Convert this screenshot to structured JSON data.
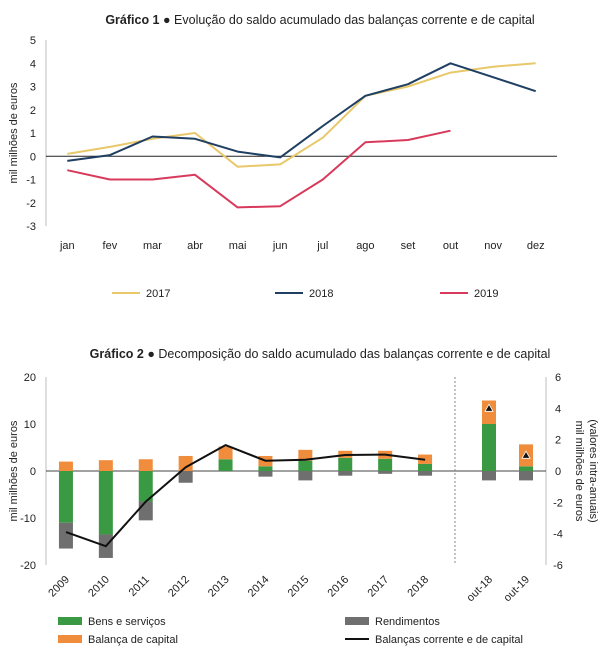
{
  "chart_data": [
    {
      "type": "line",
      "title_bold": "Gráfico 1",
      "title_bullet": "●",
      "title": "Evolução do saldo acumulado das balanças corrente e de capital",
      "ylabel": "mil milhões de euros",
      "ylim": [
        -3,
        5
      ],
      "yticks": [
        -3,
        -2,
        -1,
        0,
        1,
        2,
        3,
        4,
        5
      ],
      "categories": [
        "jan",
        "fev",
        "mar",
        "abr",
        "mai",
        "jun",
        "jul",
        "ago",
        "set",
        "out",
        "nov",
        "dez"
      ],
      "series": [
        {
          "name": "2017",
          "color": "#e8c86a",
          "values": [
            0.1,
            0.4,
            0.75,
            1.0,
            -0.45,
            -0.35,
            0.8,
            2.6,
            3.0,
            3.6,
            3.85,
            4.0
          ]
        },
        {
          "name": "2018",
          "color": "#1f3f63",
          "values": [
            -0.2,
            0.05,
            0.85,
            0.75,
            0.2,
            -0.05,
            1.3,
            2.6,
            3.1,
            4.0,
            3.4,
            2.8
          ]
        },
        {
          "name": "2019",
          "color": "#d83a5b",
          "values": [
            -0.6,
            -1.0,
            -1.0,
            -0.8,
            -2.2,
            -2.15,
            -1.0,
            0.6,
            0.7,
            1.1,
            null,
            null
          ]
        }
      ]
    },
    {
      "type": "bar",
      "stacked": true,
      "title_bold": "Gráfico 2",
      "title_bullet": "●",
      "title": "Decomposição do saldo acumulado das balanças corrente e de capital",
      "ylabel_left": "mil milhões de euros",
      "ylabel_right": "mil milhões de euros (valores intra-anuais)",
      "ylim_left": [
        -20,
        20
      ],
      "yticks_left": [
        -20,
        -10,
        0,
        10,
        20
      ],
      "ylim_right": [
        -6,
        6
      ],
      "yticks_right": [
        -6,
        -4,
        -2,
        0,
        2,
        4,
        6
      ],
      "categories_annual": [
        "2009",
        "2010",
        "2011",
        "2012",
        "2013",
        "2014",
        "2015",
        "2016",
        "2017",
        "2018"
      ],
      "categories_intra": [
        "out-18",
        "out-19"
      ],
      "series": [
        {
          "name": "Bens e serviços",
          "color": "#3a9a44",
          "annual": [
            -11,
            -13.5,
            -6.5,
            0,
            2.5,
            1.0,
            2.2,
            2.8,
            2.6,
            1.5
          ],
          "intra": [
            3,
            0.3
          ]
        },
        {
          "name": "Rendimentos",
          "color": "#6f6f6f",
          "annual": [
            -5.5,
            -5,
            -4,
            -2.5,
            0,
            -1.2,
            -2,
            -1,
            -0.6,
            -1
          ],
          "intra": [
            -0.6,
            -0.6
          ]
        },
        {
          "name": "Balança de capital",
          "color": "#ef8d3c",
          "annual": [
            2,
            2.3,
            2.5,
            3.2,
            2.7,
            2.2,
            2.3,
            1.5,
            1.7,
            2.0
          ],
          "intra": [
            1.5,
            1.4
          ]
        },
        {
          "name": "Balanças corrente e de capital",
          "color": "#111111",
          "annual": [
            -13,
            -16,
            -6.5,
            0.8,
            5.5,
            2.2,
            2.4,
            3.4,
            3.5,
            2.4
          ],
          "intra": [
            4.0,
            1.0
          ]
        }
      ]
    }
  ]
}
